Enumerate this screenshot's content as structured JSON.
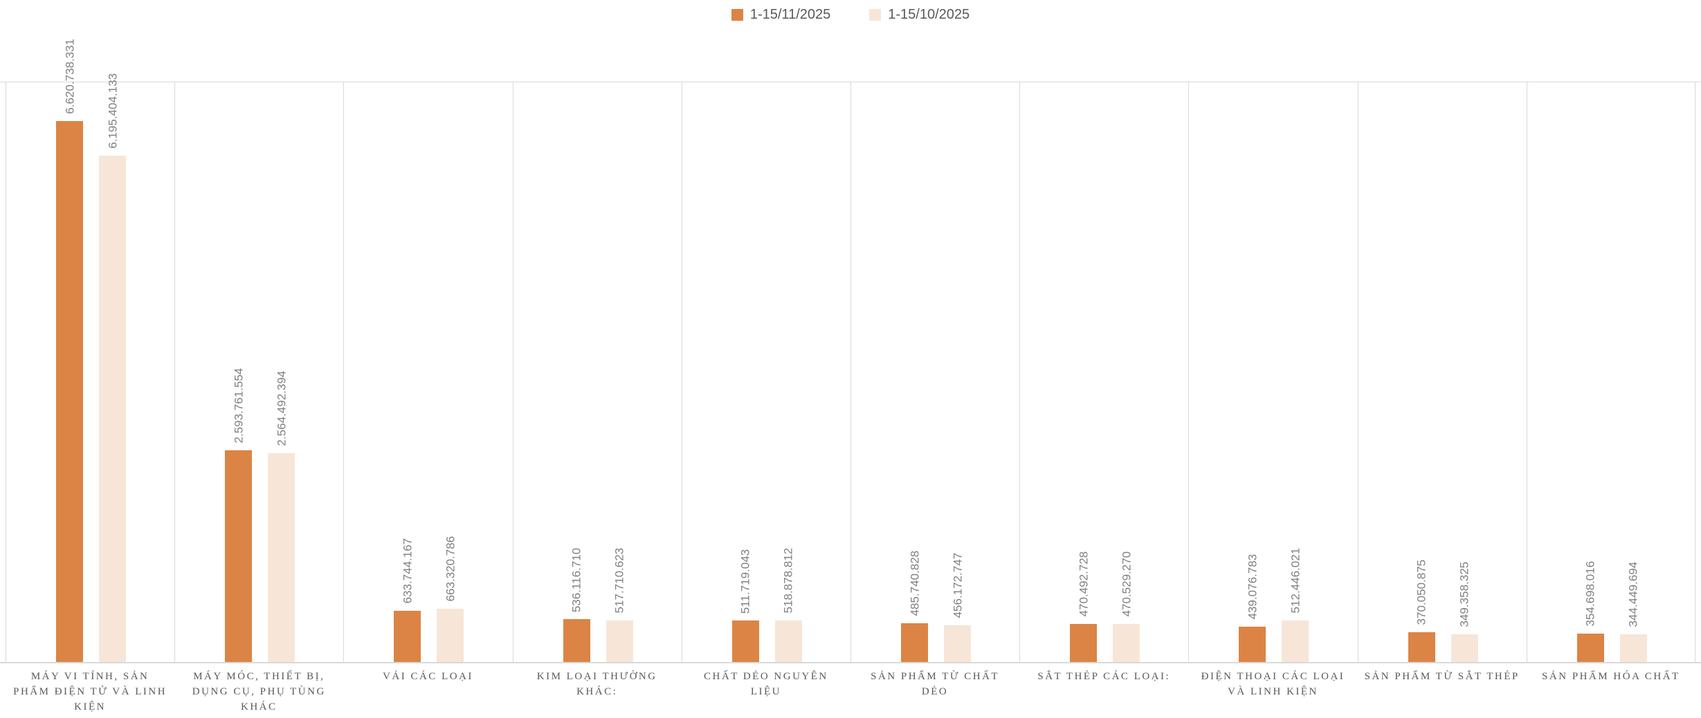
{
  "chart_data": {
    "type": "bar",
    "title": "",
    "xlabel": "",
    "ylabel": "",
    "categories": [
      "MÁY VI TÍNH, SẢN PHẨM ĐIỆN TỬ VÀ LINH KIỆN",
      "MÁY MÓC, THIẾT BỊ, DỤNG CỤ, PHỤ TÙNG KHÁC",
      "VẢI CÁC LOẠI",
      "KIM LOẠI THƯỜNG KHÁC:",
      "CHẤT DẺO NGUYÊN LIỆU",
      "SẢN PHẨM TỪ CHẤT DẺO",
      "SẮT THÉP CÁC LOẠI:",
      "ĐIỆN THOẠI CÁC LOẠI VÀ LINH KIỆN",
      "SẢN PHẨM TỪ SẮT THÉP",
      "SẢN PHẨM HÓA CHẤT"
    ],
    "series": [
      {
        "name": "1-15/11/2025",
        "color": "#DB8445",
        "values": [
          6620738331,
          2593761554,
          633744167,
          536116710,
          511719043,
          485740828,
          470492728,
          439076783,
          370050875,
          354698016
        ],
        "labels": [
          "6.620.738.331",
          "2.593.761.554",
          "633.744.167",
          "536.116.710",
          "511.719.043",
          "485.740.828",
          "470.492.728",
          "439.076.783",
          "370.050.875",
          "354.698.016"
        ]
      },
      {
        "name": "1-15/10/2025",
        "color": "#F7E6D7",
        "values": [
          6195404133,
          2564492394,
          663320786,
          517710623,
          518878812,
          456172747,
          470529270,
          512446021,
          349358325,
          344449694
        ],
        "labels": [
          "6.195.404.133",
          "2.564.492.394",
          "663.320.786",
          "517.710.623",
          "518.878.812",
          "456.172.747",
          "470.529.270",
          "512.446.021",
          "349.358.325",
          "344.449.694"
        ]
      }
    ],
    "ylim": [
      0,
      7100000000
    ],
    "value_axis_visible": false,
    "grid": "vertical-category-separators-only",
    "legend_position": "top-center",
    "value_label_rotation": -90
  },
  "colors": {
    "gridline": "#d9d9d9",
    "axis_line": "#d9d9d9",
    "value_label_text": "#808080",
    "category_label_text": "#595959",
    "legend_text": "#595959",
    "background": "#ffffff"
  }
}
